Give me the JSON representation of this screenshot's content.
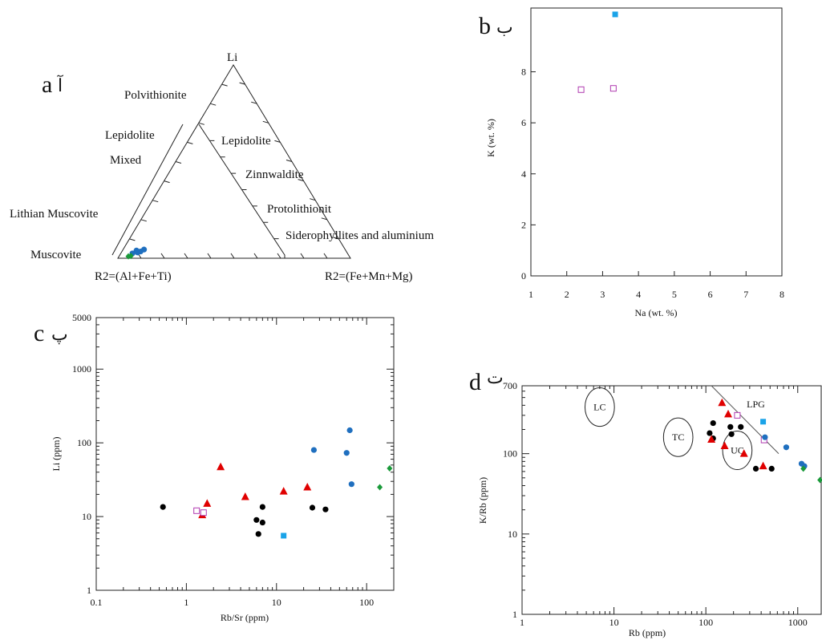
{
  "panels": {
    "a": {
      "letter": "a",
      "arabic": "آ"
    },
    "b": {
      "letter": "b",
      "arabic": "ب"
    },
    "c": {
      "letter": "c",
      "arabic": "پ"
    },
    "d": {
      "letter": "d",
      "arabic": "ت"
    }
  },
  "colors": {
    "black_circle": "#000000",
    "red_triangle": "#e00000",
    "blue_circle": "#1f6fbf",
    "cyan_square": "#1aa3e8",
    "magenta_square": "#b03ab0",
    "green_diamond": "#1a9a3a"
  },
  "chart_data": [
    {
      "id": "a",
      "type": "scatter",
      "subtype": "ternary",
      "apex_top": "Li",
      "apex_left": "R2=(Al+Fe+Ti)",
      "apex_right": "R2=(Fe+Mn+Mg)",
      "field_labels": [
        "Polvithionite",
        "Lepidolite",
        "Mixed",
        "Lithian Muscovite",
        "Muscovite",
        "Lepidolite",
        "Zinnwaldite",
        "Protolithionit",
        "Siderophyllites and aluminium"
      ],
      "points": [
        {
          "li": 0.04,
          "right": 0.06,
          "marker": "blue_circle"
        },
        {
          "li": 0.035,
          "right": 0.08,
          "marker": "blue_circle"
        },
        {
          "li": 0.03,
          "right": 0.07,
          "marker": "blue_circle"
        },
        {
          "li": 0.045,
          "right": 0.09,
          "marker": "blue_circle"
        },
        {
          "li": 0.025,
          "right": 0.05,
          "marker": "blue_circle"
        },
        {
          "li": 0.01,
          "right": 0.04,
          "marker": "green_diamond"
        },
        {
          "li": 0.012,
          "right": 0.05,
          "marker": "green_diamond"
        }
      ]
    },
    {
      "id": "b",
      "type": "scatter",
      "xlabel": "Na (wt. %)",
      "ylabel": "K (wt. %)",
      "xlim": [
        1,
        8
      ],
      "ylim": [
        0,
        10.5
      ],
      "xticks": [
        1,
        2,
        3,
        4,
        5,
        6,
        7,
        8
      ],
      "yticks": [
        0,
        2,
        4,
        6,
        8
      ],
      "points": [
        {
          "x": 2.4,
          "y": 7.3,
          "marker": "magenta_square"
        },
        {
          "x": 3.3,
          "y": 7.35,
          "marker": "magenta_square"
        },
        {
          "x": 3.35,
          "y": 10.25,
          "marker": "cyan_square"
        }
      ]
    },
    {
      "id": "c",
      "type": "scatter",
      "xlabel": "Rb/Sr (ppm)",
      "ylabel": "Li (ppm)",
      "xscale": "log",
      "yscale": "log",
      "xlim": [
        0.1,
        200
      ],
      "ylim": [
        1,
        5000
      ],
      "xticks": [
        0.1,
        1,
        10,
        100
      ],
      "xtick_labels": [
        "0.1",
        "1",
        "10",
        "100"
      ],
      "yticks": [
        1,
        10,
        100,
        1000,
        5000
      ],
      "ytick_labels": [
        "1",
        "10",
        "100",
        "1000",
        "5000"
      ],
      "points": [
        {
          "x": 0.55,
          "y": 13.5,
          "marker": "black_circle"
        },
        {
          "x": 6,
          "y": 9,
          "marker": "black_circle"
        },
        {
          "x": 6.3,
          "y": 5.8,
          "marker": "black_circle"
        },
        {
          "x": 7,
          "y": 13.5,
          "marker": "black_circle"
        },
        {
          "x": 7,
          "y": 8.3,
          "marker": "black_circle"
        },
        {
          "x": 25,
          "y": 13.2,
          "marker": "black_circle"
        },
        {
          "x": 35,
          "y": 12.5,
          "marker": "black_circle"
        },
        {
          "x": 1.5,
          "y": 10.5,
          "marker": "red_triangle"
        },
        {
          "x": 1.7,
          "y": 15,
          "marker": "red_triangle"
        },
        {
          "x": 2.4,
          "y": 47,
          "marker": "red_triangle"
        },
        {
          "x": 4.5,
          "y": 18.5,
          "marker": "red_triangle"
        },
        {
          "x": 12,
          "y": 22,
          "marker": "red_triangle"
        },
        {
          "x": 22,
          "y": 25,
          "marker": "red_triangle"
        },
        {
          "x": 1.3,
          "y": 12,
          "marker": "magenta_square"
        },
        {
          "x": 1.55,
          "y": 11.3,
          "marker": "magenta_square"
        },
        {
          "x": 12,
          "y": 5.5,
          "marker": "cyan_square"
        },
        {
          "x": 26,
          "y": 80,
          "marker": "blue_circle"
        },
        {
          "x": 60,
          "y": 73,
          "marker": "blue_circle"
        },
        {
          "x": 65,
          "y": 148,
          "marker": "blue_circle"
        },
        {
          "x": 68,
          "y": 27.5,
          "marker": "blue_circle"
        },
        {
          "x": 140,
          "y": 25,
          "marker": "green_diamond"
        },
        {
          "x": 180,
          "y": 45,
          "marker": "green_diamond"
        }
      ]
    },
    {
      "id": "d",
      "type": "scatter",
      "xlabel": "Rb (ppm)",
      "ylabel": "K/Rb (ppm)",
      "xscale": "log",
      "yscale": "log",
      "xlim": [
        1,
        1800
      ],
      "ylim": [
        1,
        700
      ],
      "xticks": [
        1,
        10,
        100,
        1000
      ],
      "xtick_labels": [
        "1",
        "10",
        "100",
        "1000"
      ],
      "yticks": [
        1,
        10,
        100,
        700
      ],
      "ytick_labels": [
        "1",
        "10",
        "100",
        "700"
      ],
      "ellipses": [
        {
          "label": "LC",
          "cx": 7,
          "cy": 380,
          "rx_dec": 0.16,
          "ry_dec": 0.24
        },
        {
          "label": "TC",
          "cx": 50,
          "cy": 160,
          "rx_dec": 0.16,
          "ry_dec": 0.24
        },
        {
          "label": "UC",
          "cx": 220,
          "cy": 110,
          "rx_dec": 0.16,
          "ry_dec": 0.24
        }
      ],
      "line_label": "LPG",
      "line": [
        {
          "x": 115,
          "y": 700
        },
        {
          "x": 620,
          "y": 100
        }
      ],
      "points": [
        {
          "x": 120,
          "y": 240,
          "marker": "black_circle"
        },
        {
          "x": 110,
          "y": 180,
          "marker": "black_circle"
        },
        {
          "x": 120,
          "y": 155,
          "marker": "black_circle"
        },
        {
          "x": 185,
          "y": 215,
          "marker": "black_circle"
        },
        {
          "x": 190,
          "y": 175,
          "marker": "black_circle"
        },
        {
          "x": 240,
          "y": 215,
          "marker": "black_circle"
        },
        {
          "x": 350,
          "y": 65,
          "marker": "black_circle"
        },
        {
          "x": 520,
          "y": 65,
          "marker": "black_circle"
        },
        {
          "x": 150,
          "y": 430,
          "marker": "red_triangle"
        },
        {
          "x": 175,
          "y": 310,
          "marker": "red_triangle"
        },
        {
          "x": 115,
          "y": 150,
          "marker": "red_triangle"
        },
        {
          "x": 160,
          "y": 125,
          "marker": "red_triangle"
        },
        {
          "x": 260,
          "y": 100,
          "marker": "red_triangle"
        },
        {
          "x": 420,
          "y": 70,
          "marker": "red_triangle"
        },
        {
          "x": 220,
          "y": 300,
          "marker": "magenta_square"
        },
        {
          "x": 430,
          "y": 148,
          "marker": "magenta_square"
        },
        {
          "x": 420,
          "y": 250,
          "marker": "cyan_square"
        },
        {
          "x": 440,
          "y": 160,
          "marker": "blue_circle"
        },
        {
          "x": 750,
          "y": 120,
          "marker": "blue_circle"
        },
        {
          "x": 1100,
          "y": 75,
          "marker": "blue_circle"
        },
        {
          "x": 1180,
          "y": 70,
          "marker": "blue_circle"
        },
        {
          "x": 1150,
          "y": 65,
          "marker": "green_diamond"
        },
        {
          "x": 1750,
          "y": 47,
          "marker": "green_diamond"
        }
      ]
    }
  ]
}
